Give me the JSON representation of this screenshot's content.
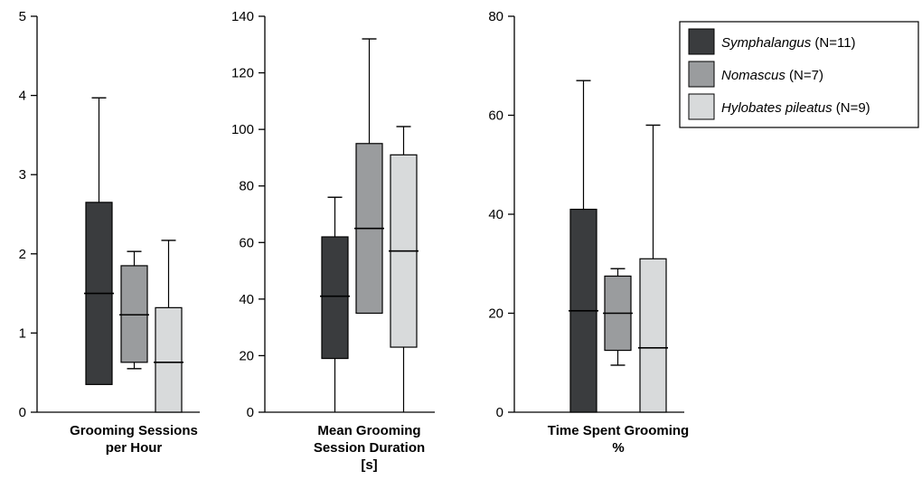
{
  "colors": {
    "symphalangus": "#3a3c3e",
    "nomascus": "#9a9c9e",
    "hylobates": "#d8dadb",
    "axis": "#000000"
  },
  "legend": {
    "placement": "top-right",
    "items": [
      {
        "name": "Symphalangus",
        "suffix": " (N=11)",
        "color": "#3a3c3e"
      },
      {
        "name": "Nomascus",
        "suffix": " (N=7)",
        "color": "#9a9c9e"
      },
      {
        "name": "Hylobates pileatus",
        "suffix": " (N=9)",
        "color": "#d8dadb"
      }
    ]
  },
  "chart_data": [
    {
      "type": "box",
      "xlabel": [
        "Grooming Sessions",
        "per Hour"
      ],
      "ylim": [
        0,
        5
      ],
      "yticks": [
        "0",
        "1",
        "2",
        "3",
        "4",
        "5"
      ],
      "tickvals": [
        0,
        1,
        2,
        3,
        4,
        5
      ],
      "series": [
        {
          "name": "Symphalangus",
          "min": 0.35,
          "q1": 0.35,
          "median": 1.5,
          "q3": 2.65,
          "max": 3.97
        },
        {
          "name": "Nomascus",
          "min": 0.55,
          "q1": 0.63,
          "median": 1.23,
          "q3": 1.85,
          "max": 2.03
        },
        {
          "name": "Hylobates pileatus",
          "min": 0,
          "q1": 0,
          "median": 0.63,
          "q3": 1.32,
          "max": 2.17
        }
      ]
    },
    {
      "type": "box",
      "xlabel": [
        "Mean Grooming",
        "Session Duration",
        "[s]"
      ],
      "ylim": [
        0,
        140
      ],
      "yticks": [
        "0",
        "20",
        "40",
        "60",
        "80",
        "100",
        "120",
        "140"
      ],
      "tickvals": [
        0,
        20,
        40,
        60,
        80,
        100,
        120,
        140
      ],
      "series": [
        {
          "name": "Symphalangus",
          "min": 0,
          "q1": 19,
          "median": 41,
          "q3": 62,
          "max": 76
        },
        {
          "name": "Nomascus",
          "min": 35,
          "q1": 35,
          "median": 65,
          "q3": 95,
          "max": 132
        },
        {
          "name": "Hylobates pileatus",
          "min": 0,
          "q1": 23,
          "median": 57,
          "q3": 91,
          "max": 101
        }
      ]
    },
    {
      "type": "box",
      "xlabel": [
        "Time Spent Grooming",
        "%"
      ],
      "ylim": [
        0,
        80
      ],
      "yticks": [
        "0",
        "20",
        "40",
        "60",
        "80"
      ],
      "tickvals": [
        0,
        20,
        40,
        60,
        80
      ],
      "series": [
        {
          "name": "Symphalangus",
          "min": 0,
          "q1": 0,
          "median": 20.5,
          "q3": 41,
          "max": 67
        },
        {
          "name": "Nomascus",
          "min": 9.5,
          "q1": 12.5,
          "median": 20,
          "q3": 27.5,
          "max": 29
        },
        {
          "name": "Hylobates pileatus",
          "min": 0,
          "q1": 0,
          "median": 13,
          "q3": 31,
          "max": 58
        }
      ]
    }
  ]
}
